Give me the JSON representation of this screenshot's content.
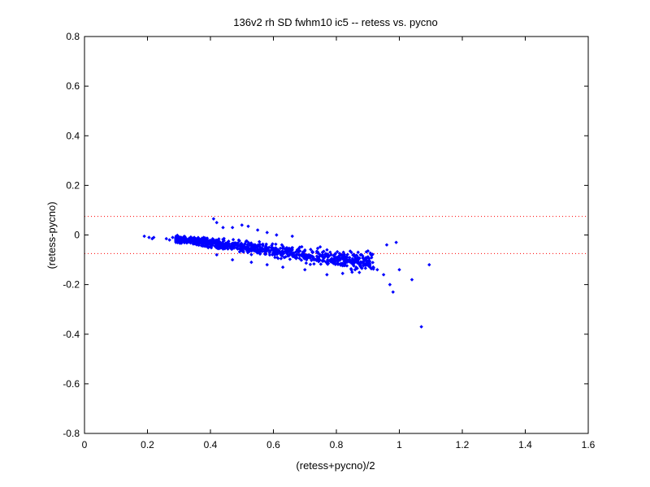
{
  "chart_data": {
    "type": "scatter",
    "title": "136v2 rh SD fwhm10 ic5 -- retess vs. pycno",
    "xlabel": "(retess+pycno)/2",
    "ylabel": "(retess-pycno)",
    "xlim": [
      0,
      1.6
    ],
    "ylim": [
      -0.8,
      0.8
    ],
    "xticks": [
      "0",
      "0.2",
      "0.4",
      "0.6",
      "0.8",
      "1",
      "1.2",
      "1.4",
      "1.6"
    ],
    "yticks": [
      "-0.8",
      "-0.6",
      "-0.4",
      "-0.2",
      "0",
      "0.2",
      "0.4",
      "0.6",
      "0.8"
    ],
    "grid": false,
    "reference_lines": [
      {
        "y": 0.075,
        "style": "dotted",
        "color": "#ff0000"
      },
      {
        "y": -0.075,
        "style": "dotted",
        "color": "#ff0000"
      }
    ],
    "marker_color": "#0000ff",
    "marker": "diamond",
    "series": [
      {
        "trend": {
          "slope": -0.11,
          "intercept": 0.015
        },
        "points": [
          [
            0.19,
            -0.005
          ],
          [
            0.205,
            -0.01
          ],
          [
            0.215,
            -0.015
          ],
          [
            0.22,
            -0.01
          ],
          [
            0.26,
            -0.015
          ],
          [
            0.27,
            -0.02
          ],
          [
            0.28,
            -0.01
          ],
          [
            0.41,
            0.065
          ],
          [
            0.42,
            0.05
          ],
          [
            0.44,
            0.03
          ],
          [
            0.47,
            0.03
          ],
          [
            0.5,
            0.04
          ],
          [
            0.52,
            0.035
          ],
          [
            0.55,
            0.02
          ],
          [
            0.58,
            0.01
          ],
          [
            0.61,
            0.0
          ],
          [
            0.66,
            -0.005
          ],
          [
            0.42,
            -0.08
          ],
          [
            0.47,
            -0.1
          ],
          [
            0.53,
            -0.11
          ],
          [
            0.58,
            -0.12
          ],
          [
            0.63,
            -0.13
          ],
          [
            0.7,
            -0.14
          ],
          [
            0.77,
            -0.16
          ],
          [
            0.82,
            -0.155
          ],
          [
            0.85,
            -0.15
          ],
          [
            0.9,
            -0.12
          ],
          [
            0.93,
            -0.14
          ],
          [
            0.95,
            -0.16
          ],
          [
            0.96,
            -0.04
          ],
          [
            0.97,
            -0.2
          ],
          [
            0.98,
            -0.23
          ],
          [
            0.99,
            -0.03
          ],
          [
            1.0,
            -0.14
          ],
          [
            1.04,
            -0.18
          ],
          [
            1.07,
            -0.37
          ],
          [
            1.095,
            -0.12
          ]
        ]
      }
    ]
  }
}
